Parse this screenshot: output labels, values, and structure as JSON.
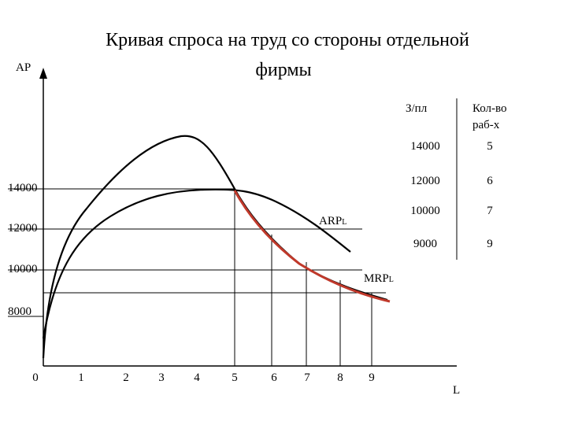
{
  "title": [
    "Кривая спроса на труд со стороны отдельной",
    "фирмы"
  ],
  "y_axis_label": "AP",
  "x_axis_label": "L",
  "y_labels": [
    14000,
    12000,
    10000,
    8000
  ],
  "x_labels": [
    0,
    1,
    2,
    3,
    4,
    5,
    6,
    7,
    8,
    9
  ],
  "curves": [
    {
      "label": "ARP",
      "subscript": "L"
    },
    {
      "label": "MRP",
      "subscript": "L"
    }
  ],
  "table": {
    "headers": {
      "wage": "З/пл",
      "workers": [
        "Кол-во",
        "раб-х"
      ]
    },
    "rows": [
      [
        14000,
        5
      ],
      [
        12000,
        6
      ],
      [
        10000,
        7
      ],
      [
        9000,
        9
      ]
    ]
  }
}
